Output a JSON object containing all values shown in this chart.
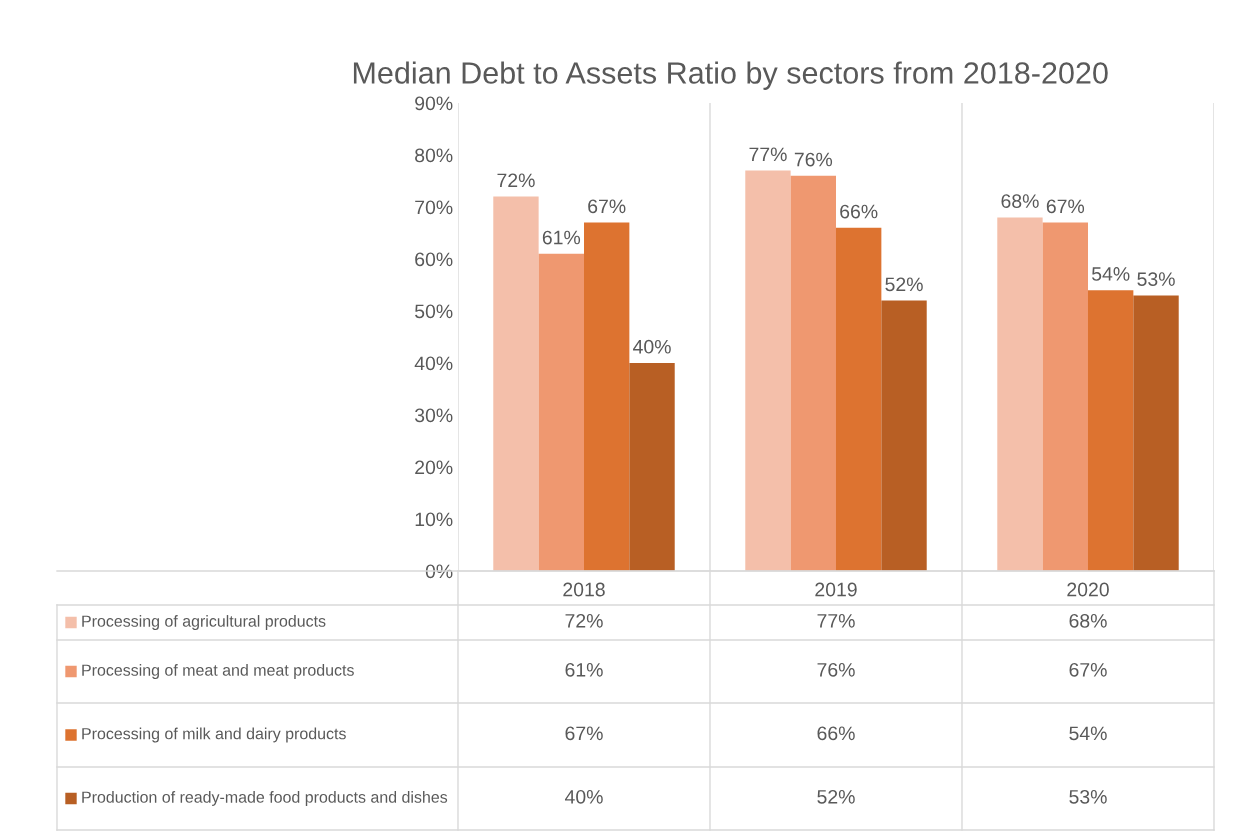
{
  "chart_data": {
    "type": "bar",
    "title": "Median Debt to Assets Ratio by sectors from 2018-2020",
    "categories": [
      "2018",
      "2019",
      "2020"
    ],
    "series": [
      {
        "name": "Processing of agricultural products",
        "color": "#f4bfaa",
        "values": [
          72,
          77,
          68
        ],
        "value_labels": [
          "72%",
          "77%",
          "68%"
        ]
      },
      {
        "name": "Processing of meat and meat products",
        "color": "#ef9870",
        "values": [
          61,
          76,
          67
        ],
        "value_labels": [
          "61%",
          "76%",
          "67%"
        ]
      },
      {
        "name": "Processing of milk and dairy products",
        "color": "#dd7330",
        "values": [
          67,
          66,
          54
        ],
        "value_labels": [
          "67%",
          "66%",
          "54%"
        ]
      },
      {
        "name": "Production of ready-made food products and dishes",
        "color": "#b85f24",
        "values": [
          40,
          52,
          53
        ],
        "value_labels": [
          "40%",
          "52%",
          "53%"
        ]
      }
    ],
    "ylim": [
      0,
      90
    ],
    "yticks": [
      {
        "value": 0,
        "label": "0%"
      },
      {
        "value": 10,
        "label": "10%"
      },
      {
        "value": 20,
        "label": "20%"
      },
      {
        "value": 30,
        "label": "30%"
      },
      {
        "value": 40,
        "label": "40%"
      },
      {
        "value": 50,
        "label": "50%"
      },
      {
        "value": 60,
        "label": "60%"
      },
      {
        "value": 70,
        "label": "70%"
      },
      {
        "value": 80,
        "label": "80%"
      },
      {
        "value": 90,
        "label": "90%"
      }
    ],
    "grid": false,
    "legend": "bottom"
  }
}
